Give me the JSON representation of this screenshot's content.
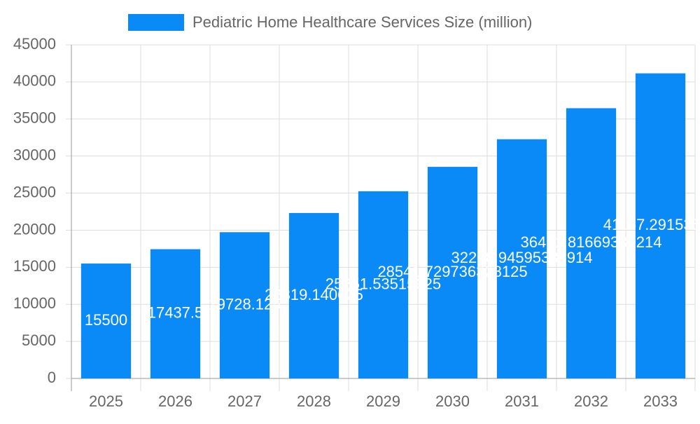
{
  "chart_data": {
    "type": "bar",
    "legend": "Pediatric Home Healthcare Services Size (million)",
    "categories": [
      "2025",
      "2026",
      "2027",
      "2028",
      "2029",
      "2030",
      "2031",
      "2032",
      "2033"
    ],
    "values": [
      15500,
      17437.5,
      19728.125,
      22319.140625,
      25251.53515625,
      28541.729736328125,
      32268.94595336914,
      36451.81669330214,
      41157.29153594
    ],
    "color": "#0a8af7",
    "ylim": [
      0,
      45000
    ],
    "yticks": [
      0,
      5000,
      10000,
      15000,
      20000,
      25000,
      30000,
      35000,
      40000,
      45000
    ],
    "grid": true
  }
}
